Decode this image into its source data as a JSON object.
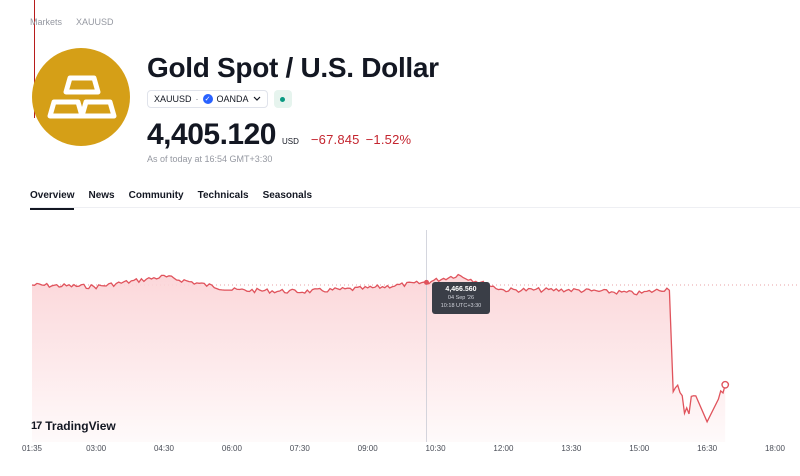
{
  "breadcrumb": {
    "markets": "Markets",
    "symbol": "XAUUSD"
  },
  "header": {
    "title": "Gold Spot / U.S. Dollar",
    "symbol_chip": "XAUUSD",
    "separator": "·",
    "broker_chip": "OANDA",
    "price": "4,405.120",
    "currency": "USD",
    "change": "−67.845",
    "change_pct": "−1.52%",
    "as_of": "As of today at 16:54 GMT+3:30"
  },
  "tabs": [
    {
      "label": "Overview",
      "active": true
    },
    {
      "label": "News"
    },
    {
      "label": "Community"
    },
    {
      "label": "Technicals"
    },
    {
      "label": "Seasonals"
    }
  ],
  "tooltip": {
    "value": "4,466.560",
    "date": "04 Sep '26",
    "time": "10:18 UTC+3:30"
  },
  "branding": {
    "name": "TradingView",
    "mark": "17"
  },
  "icons": {
    "logo": "gold-bars-icon",
    "verified": "check-badge-icon",
    "dropdown": "chevron-down-icon",
    "status": "market-status-dot-icon"
  },
  "colors": {
    "accent_negative": "#c4252f",
    "logo_bg": "#d59f17",
    "chart_line": "#e0535c",
    "chart_fill": "#fbd5d8",
    "status_green": "#089981"
  },
  "chart_data": {
    "type": "area",
    "x_ticks": [
      "01:35",
      "03:00",
      "04:30",
      "06:00",
      "07:30",
      "09:00",
      "10:30",
      "12:00",
      "13:30",
      "15:00",
      "16:30",
      "18:00"
    ],
    "series": [
      {
        "x": [
          "01:35",
          "03:00",
          "04:30",
          "06:00",
          "07:30",
          "09:00",
          "10:18",
          "11:00",
          "12:00",
          "13:30",
          "15:00",
          "15:40",
          "15:45",
          "16:00",
          "16:15",
          "16:30",
          "16:45",
          "16:54"
        ],
        "y": [
          4465,
          4464,
          4470,
          4462,
          4461,
          4463,
          4466.56,
          4471,
          4462,
          4462,
          4460,
          4463,
          4405,
          4391,
          4398,
          4382,
          4402,
          4405.12
        ]
      }
    ]
  }
}
